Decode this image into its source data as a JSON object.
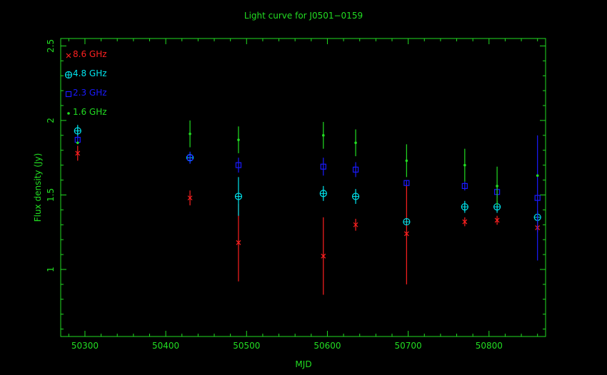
{
  "chart_data": {
    "type": "scatter",
    "title": "Light curve for J0501−0159",
    "xlabel": "MJD",
    "ylabel": "Flux density (Jy)",
    "xlim": [
      50270,
      50870
    ],
    "ylim": [
      0.55,
      2.55
    ],
    "xticks": [
      50300,
      50400,
      50500,
      50600,
      50700,
      50800
    ],
    "xtick_labels": [
      "50300",
      "50400",
      "50500",
      "50600",
      "50700",
      "50800"
    ],
    "yticks": [
      1,
      1.5,
      2,
      2.5
    ],
    "ytick_labels": [
      "1",
      "1.5",
      "2",
      "2.5"
    ],
    "grid": false,
    "legend_position": "top-left",
    "series": [
      {
        "name": "8.6 GHz",
        "color": "#ff2020",
        "marker": "cross",
        "points": [
          {
            "x": 50291,
            "y": 1.78,
            "err": 0.05
          },
          {
            "x": 50430,
            "y": 1.48,
            "err": 0.05
          },
          {
            "x": 50490,
            "y": 1.18,
            "err": 0.26
          },
          {
            "x": 50595,
            "y": 1.09,
            "err": 0.26
          },
          {
            "x": 50635,
            "y": 1.3,
            "err": 0.04
          },
          {
            "x": 50698,
            "y": 1.24,
            "err": 0.34
          },
          {
            "x": 50770,
            "y": 1.32,
            "err": 0.03
          },
          {
            "x": 50810,
            "y": 1.33,
            "err": 0.03
          },
          {
            "x": 50860,
            "y": 1.28,
            "err": 0.03
          }
        ]
      },
      {
        "name": "4.8 GHz",
        "color": "#00e5ee",
        "marker": "circle-plus",
        "points": [
          {
            "x": 50291,
            "y": 1.93,
            "err": 0.04
          },
          {
            "x": 50430,
            "y": 1.75,
            "err": 0.04
          },
          {
            "x": 50490,
            "y": 1.49,
            "err": 0.13
          },
          {
            "x": 50595,
            "y": 1.51,
            "err": 0.05
          },
          {
            "x": 50635,
            "y": 1.49,
            "err": 0.05
          },
          {
            "x": 50698,
            "y": 1.32,
            "err": 0.0
          },
          {
            "x": 50770,
            "y": 1.42,
            "err": 0.04
          },
          {
            "x": 50810,
            "y": 1.42,
            "err": 0.04
          },
          {
            "x": 50860,
            "y": 1.35,
            "err": 0.04
          }
        ]
      },
      {
        "name": "2.3 GHz",
        "color": "#1a1aff",
        "marker": "square",
        "points": [
          {
            "x": 50291,
            "y": 1.87,
            "err": 0.03
          },
          {
            "x": 50430,
            "y": 1.75,
            "err": 0.04
          },
          {
            "x": 50490,
            "y": 1.7,
            "err": 0.05
          },
          {
            "x": 50595,
            "y": 1.69,
            "err": 0.06
          },
          {
            "x": 50635,
            "y": 1.67,
            "err": 0.05
          },
          {
            "x": 50698,
            "y": 1.58,
            "err": 0.02
          },
          {
            "x": 50770,
            "y": 1.56,
            "err": 0.03
          },
          {
            "x": 50810,
            "y": 1.52,
            "err": 0.04
          },
          {
            "x": 50860,
            "y": 1.48,
            "err": 0.42
          }
        ]
      },
      {
        "name": "1.6 GHz",
        "color": "#22dd22",
        "marker": "dot",
        "points": [
          {
            "x": 50291,
            "y": 1.85,
            "err": 0.0
          },
          {
            "x": 50430,
            "y": 1.91,
            "err": 0.09
          },
          {
            "x": 50490,
            "y": 1.87,
            "err": 0.09
          },
          {
            "x": 50595,
            "y": 1.9,
            "err": 0.09
          },
          {
            "x": 50635,
            "y": 1.85,
            "err": 0.09
          },
          {
            "x": 50698,
            "y": 1.73,
            "err": 0.11
          },
          {
            "x": 50770,
            "y": 1.7,
            "err": 0.11
          },
          {
            "x": 50810,
            "y": 1.56,
            "err": 0.13
          },
          {
            "x": 50860,
            "y": 1.63,
            "err": 0.0
          }
        ]
      }
    ],
    "colors": {
      "axes": "#22dd22",
      "text": "#22dd22",
      "background": "#000000"
    }
  }
}
